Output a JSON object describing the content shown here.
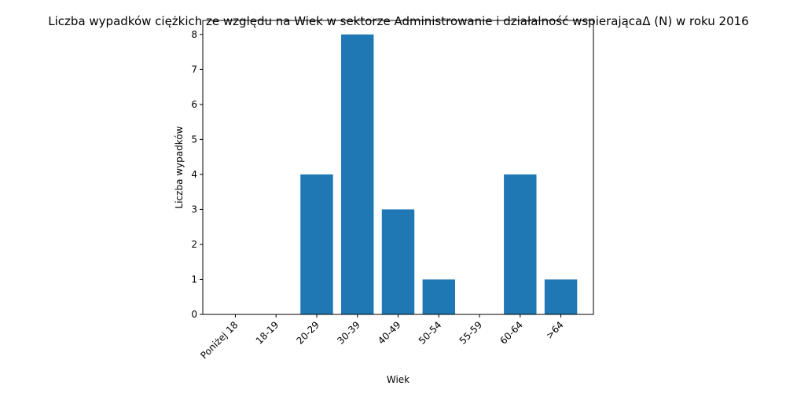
{
  "chart_data": {
    "type": "bar",
    "title": "Liczba wypadków ciężkich ze względu na Wiek w sektorze Administrowanie i działalność wspierającaΔ (N) w roku 2016",
    "xlabel": "Wiek",
    "ylabel": "Liczba wypadków",
    "categories": [
      "Poniżej 18",
      "18-19",
      "20-29",
      "30-39",
      "40-49",
      "50-54",
      "55-59",
      "60-64",
      ">64"
    ],
    "values": [
      0,
      0,
      4,
      8,
      3,
      1,
      0,
      4,
      1
    ],
    "ylim": [
      0,
      8.4
    ],
    "yticks": [
      0,
      1,
      2,
      3,
      4,
      5,
      6,
      7,
      8
    ],
    "bar_color": "#1f77b4",
    "grid": false,
    "legend": "none"
  }
}
